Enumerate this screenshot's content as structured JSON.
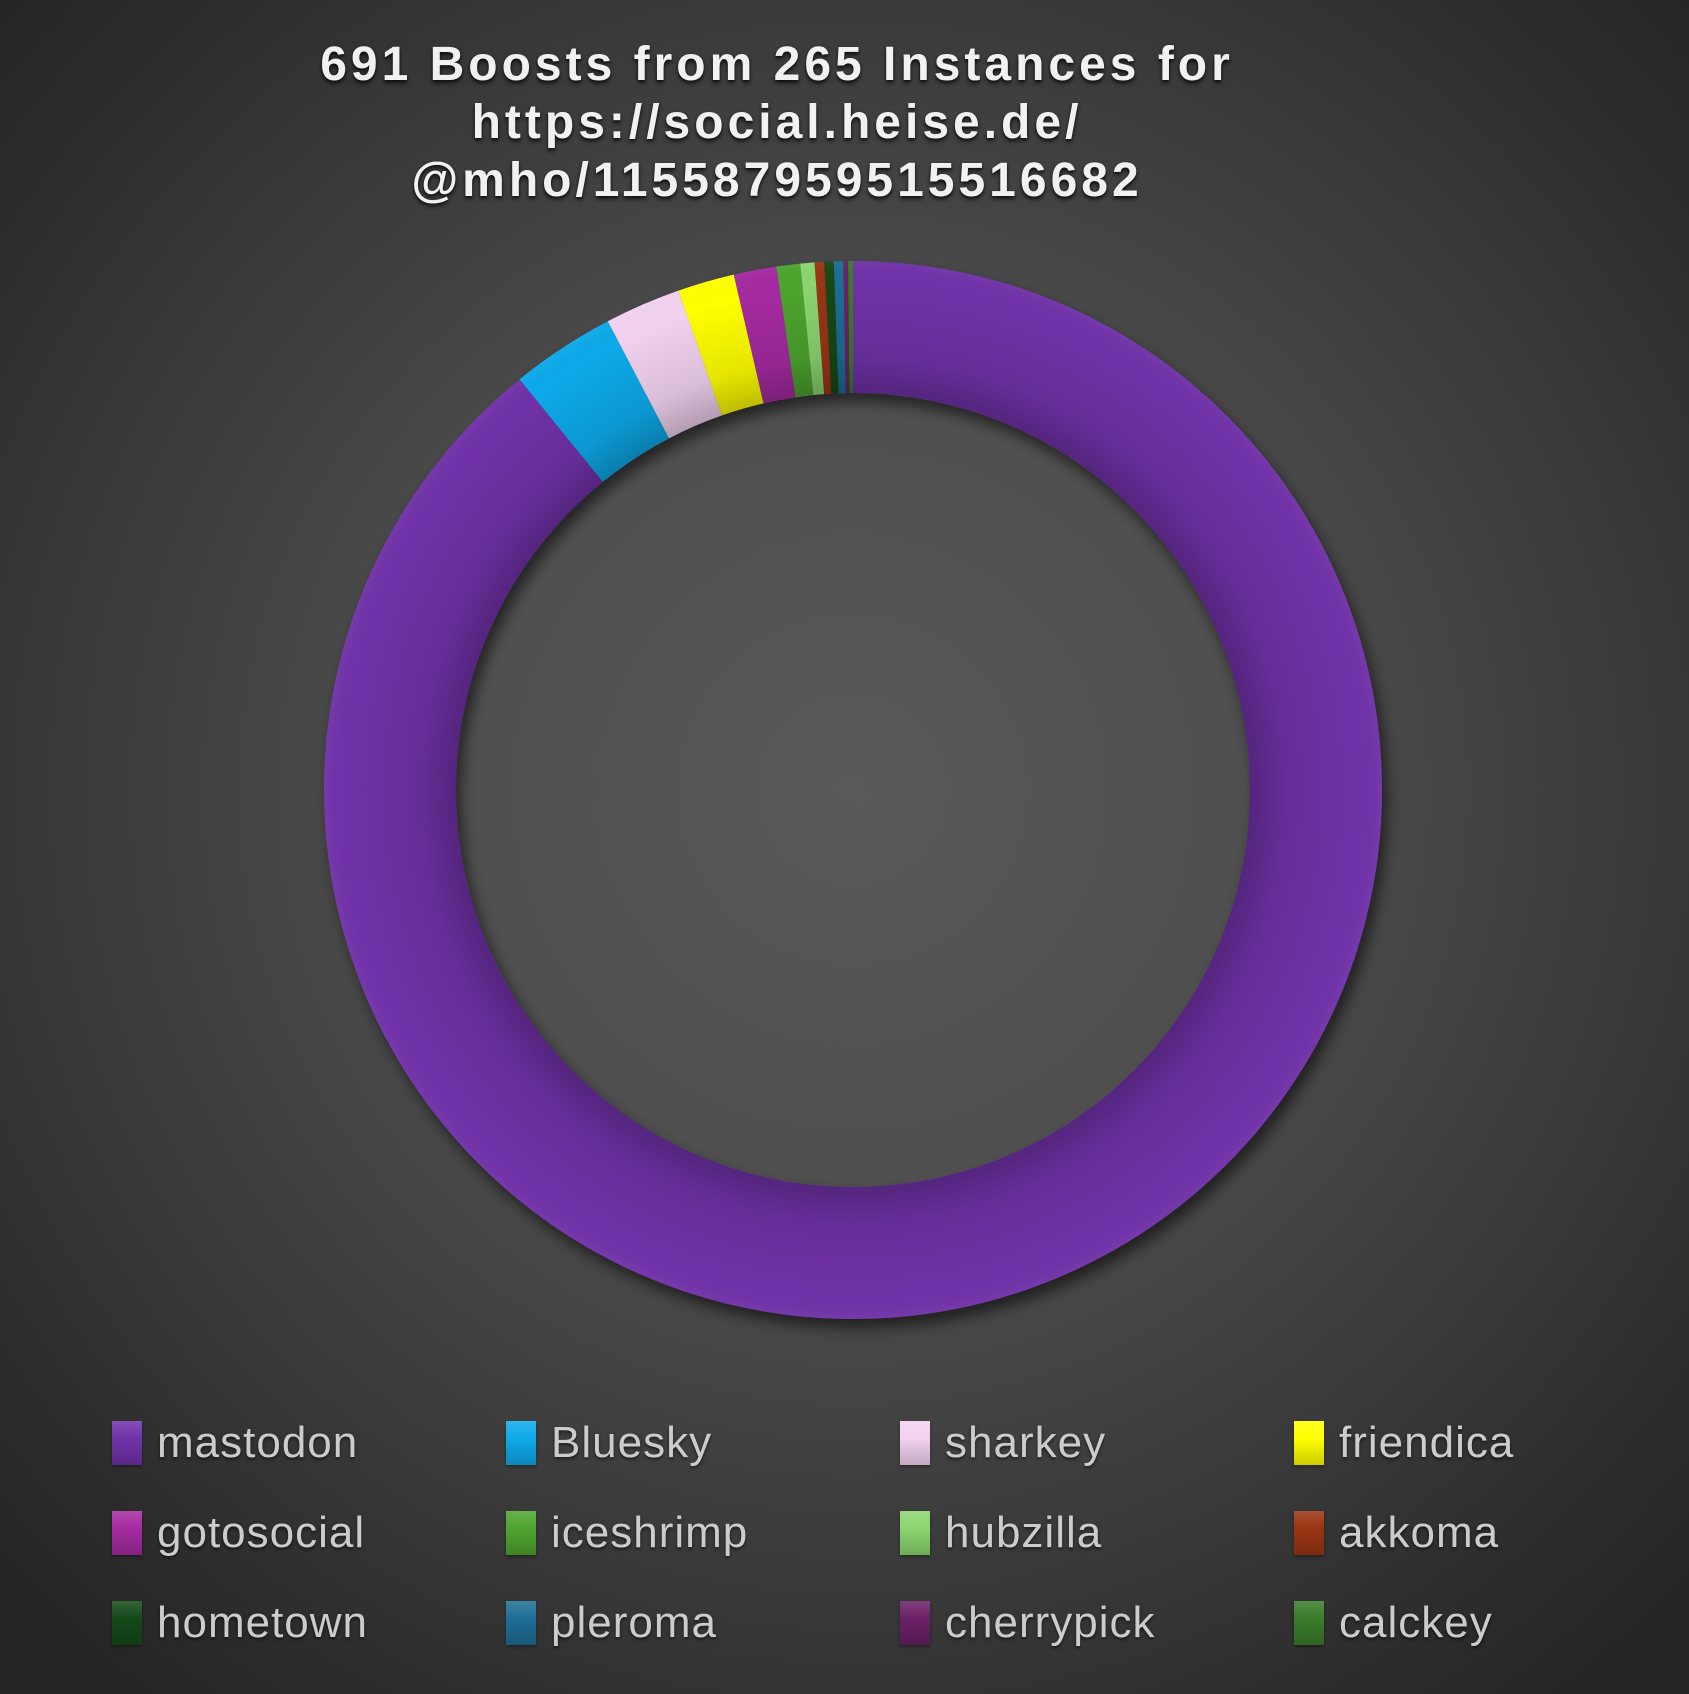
{
  "title": {
    "line1": "691 Boosts from 265 Instances for",
    "line2": "https://social.heise.de/",
    "line3": "@mho/115587959515516682"
  },
  "chart_data": {
    "type": "pie",
    "subtype": "donut",
    "title": "691 Boosts from 265 Instances for https://social.heise.de/@mho/115587959515516682",
    "total_boosts": 691,
    "total_instances": 265,
    "start_angle": "12-o-clock",
    "direction": "clockwise",
    "legend_position": "bottom",
    "legend_columns": 4,
    "categories": [
      "mastodon",
      "Bluesky",
      "sharkey",
      "friendica",
      "gotosocial",
      "iceshrimp",
      "hubzilla",
      "akkoma",
      "hometown",
      "pleroma",
      "cherrypick",
      "calckey"
    ],
    "values": [
      616,
      22,
      16,
      12,
      9,
      5,
      3,
      2,
      2,
      2,
      1,
      1
    ],
    "colors": [
      "#7132a9",
      "#0fa9e9",
      "#f2d2ef",
      "#ffff00",
      "#a52ba1",
      "#4ea42f",
      "#8bd56f",
      "#9a3513",
      "#154a18",
      "#1f6e96",
      "#6b2066",
      "#3b7c2b"
    ]
  }
}
